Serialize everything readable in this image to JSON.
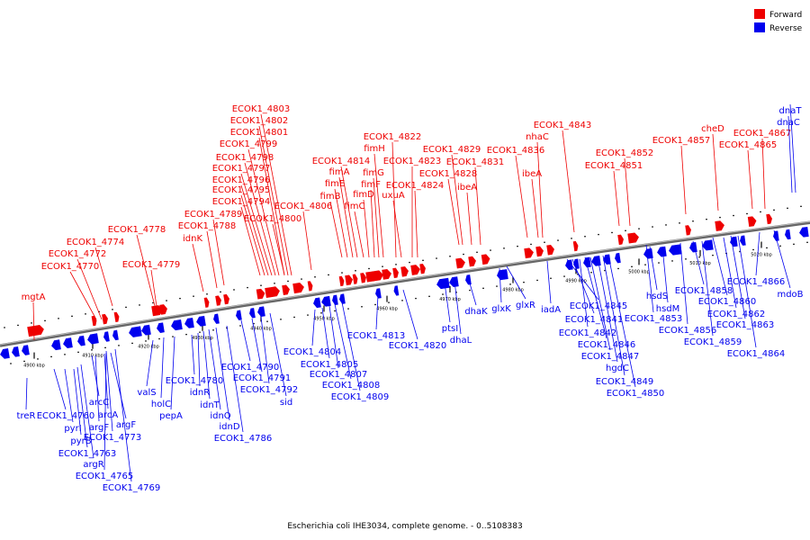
{
  "caption": "Escherichia coli IHE3034, complete genome. - 0..5108383",
  "legend": [
    {
      "label": "Forward",
      "color": "#ee0000"
    },
    {
      "label": "Reverse",
      "color": "#0000ee"
    }
  ],
  "colors": {
    "forward": "#ee0000",
    "reverse": "#0000ee",
    "backbone": "#777777"
  },
  "ticks": [
    "4900 kbp",
    "4910 kbp",
    "4920 kbp",
    "4930 kbp",
    "4940 kbp",
    "4950 kbp",
    "4960 kbp",
    "4970 kbp",
    "4980 kbp",
    "4990 kbp",
    "5000 kbp",
    "5010 kbp",
    "5020 kbp"
  ],
  "forward_labels": [
    "mgtA",
    "ECOK1_4770",
    "ECOK1_4772",
    "ECOK1_4774",
    "ECOK1_4778",
    "ECOK1_4779",
    "idnK",
    "ECOK1_4788",
    "ECOK1_4789",
    "ECOK1_4794",
    "ECOK1_4795",
    "ECOK1_4796",
    "ECOK1_4797",
    "ECOK1_4798",
    "ECOK1_4799",
    "ECOK1_4801",
    "ECOK1_4802",
    "ECOK1_4803",
    "ECOK1_4800",
    "ECOK1_4806",
    "fimB",
    "fimE",
    "fimA",
    "ECOK1_4814",
    "fimC",
    "fimD",
    "fimF",
    "fimG",
    "fimH",
    "ECOK1_4822",
    "uxuA",
    "ECOK1_4823",
    "ECOK1_4824",
    "ECOK1_4828",
    "ECOK1_4829",
    "ibeA",
    "ECOK1_4831",
    "ibeA",
    "ECOK1_4836",
    "nhaC",
    "ECOK1_4843",
    "ECOK1_4851",
    "ECOK1_4852",
    "ECOK1_4857",
    "cheD",
    "ECOK1_4865",
    "ECOK1_4867"
  ],
  "reverse_labels": [
    "treR",
    "ECOK1_4760",
    "pyrI",
    "pyrB",
    "arcC",
    "argF",
    "arcA",
    "argF",
    "ECOK1_4763",
    "argR",
    "ECOK1_4765",
    "ECOK1_4769",
    "ECOK1_4773",
    "valS",
    "holC",
    "pepA",
    "ECOK1_4780",
    "idnR",
    "idnT",
    "idnO",
    "idnD",
    "ECOK1_4786",
    "ECOK1_4790",
    "ECOK1_4791",
    "ECOK1_4792",
    "sid",
    "ECOK1_4804",
    "ECOK1_4805",
    "ECOK1_4807",
    "ECOK1_4808",
    "ECOK1_4809",
    "ECOK1_4813",
    "ECOK1_4820",
    "ptsI",
    "dhaL",
    "dhaK",
    "glxK",
    "glxR",
    "iadA",
    "ECOK1_4845",
    "ECOK1_4841",
    "ECOK1_4842",
    "ECOK1_4846",
    "ECOK1_4847",
    "hgdC",
    "ECOK1_4849",
    "ECOK1_4850",
    "hsdS",
    "hsdM",
    "ECOK1_4853",
    "ECOK1_4856",
    "ECOK1_4858",
    "ECOK1_4859",
    "ECOK1_4860",
    "ECOK1_4862",
    "ECOK1_4863",
    "ECOK1_4864",
    "ECOK1_4866",
    "mdoB",
    "dnaC",
    "dnaT"
  ]
}
